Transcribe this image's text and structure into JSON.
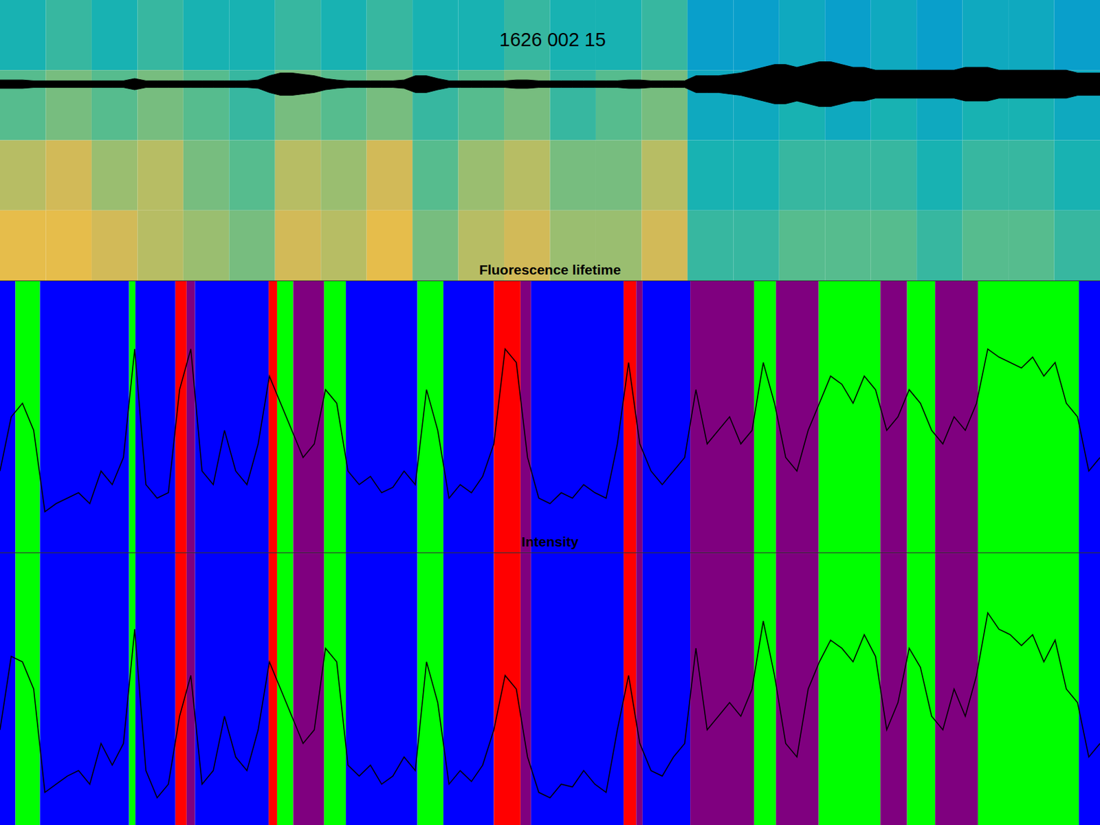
{
  "chart_data": [
    {
      "type": "spectrogram",
      "title": "1626 002 15",
      "tick_labels": false,
      "xlim": [
        0,
        1568
      ],
      "ylim": [
        0,
        100
      ],
      "clim": [
        0,
        1
      ],
      "cells": [
        [
          0.45,
          0.5,
          0.45,
          0.5,
          0.45,
          0.45,
          0.5,
          0.45,
          0.5,
          0.45,
          0.45,
          0.5,
          0.45,
          0.45,
          0.5,
          0.35,
          0.35,
          0.4,
          0.35,
          0.4,
          0.35,
          0.4,
          0.4,
          0.35
        ],
        [
          0.55,
          0.6,
          0.55,
          0.6,
          0.55,
          0.5,
          0.6,
          0.55,
          0.6,
          0.5,
          0.55,
          0.6,
          0.5,
          0.55,
          0.6,
          0.4,
          0.4,
          0.45,
          0.4,
          0.45,
          0.4,
          0.45,
          0.45,
          0.4
        ],
        [
          0.7,
          0.75,
          0.65,
          0.7,
          0.6,
          0.55,
          0.7,
          0.65,
          0.75,
          0.55,
          0.65,
          0.7,
          0.6,
          0.6,
          0.7,
          0.45,
          0.45,
          0.5,
          0.5,
          0.5,
          0.45,
          0.5,
          0.5,
          0.45
        ],
        [
          0.8,
          0.8,
          0.75,
          0.7,
          0.65,
          0.6,
          0.75,
          0.7,
          0.8,
          0.6,
          0.7,
          0.75,
          0.65,
          0.65,
          0.75,
          0.5,
          0.5,
          0.55,
          0.55,
          0.55,
          0.5,
          0.55,
          0.55,
          0.5
        ]
      ],
      "trace_color": "#000000",
      "trace_center": 70,
      "x": [
        0,
        16,
        32,
        48,
        64,
        80,
        96,
        112,
        128,
        144,
        160,
        176,
        192,
        208,
        224,
        240,
        256,
        272,
        288,
        304,
        320,
        336,
        352,
        368,
        384,
        400,
        416,
        432,
        448,
        464,
        480,
        496,
        512,
        528,
        544,
        560,
        576,
        592,
        608,
        624,
        640,
        656,
        672,
        688,
        704,
        720,
        736,
        752,
        768,
        784,
        800,
        816,
        832,
        848,
        864,
        880,
        896,
        912,
        928,
        944,
        960,
        976,
        992,
        1008,
        1024,
        1040,
        1056,
        1072,
        1088,
        1104,
        1120,
        1136,
        1152,
        1168,
        1184,
        1200,
        1216,
        1232,
        1248,
        1264,
        1280,
        1296,
        1312,
        1328,
        1344,
        1360,
        1376,
        1392,
        1408,
        1424,
        1440,
        1456,
        1472,
        1488,
        1504,
        1520,
        1536,
        1552,
        1568
      ],
      "trace_amplitude": [
        1.5,
        1.5,
        1.5,
        1.2,
        1.2,
        1.2,
        1.2,
        1.2,
        1.2,
        1.2,
        1.2,
        1.2,
        2,
        1.2,
        1.2,
        1.2,
        1.2,
        1.2,
        1.2,
        1.2,
        1.2,
        1.2,
        1.2,
        1.5,
        3,
        4,
        4,
        3.5,
        3,
        2,
        1.5,
        1.2,
        1.2,
        1.2,
        1.2,
        1.2,
        1.5,
        3,
        3,
        2,
        1.2,
        1.2,
        1.2,
        1.2,
        1.2,
        1.2,
        1.5,
        1.5,
        1.2,
        1.2,
        1.2,
        1.2,
        1.2,
        1.2,
        1.2,
        1.2,
        1.5,
        1.5,
        1.2,
        1.2,
        1.2,
        1.2,
        3,
        3,
        3,
        3.5,
        4,
        5,
        6,
        7,
        7,
        6,
        7,
        8,
        8,
        7,
        6,
        6,
        5,
        5,
        5,
        5,
        5,
        5,
        5,
        5,
        6,
        6,
        6,
        5,
        5,
        5,
        5,
        5,
        5,
        5,
        4,
        4,
        4
      ]
    },
    {
      "type": "line",
      "title": "Fluorescence lifetime",
      "tick_labels": false,
      "xlim": [
        0,
        1568
      ],
      "ylim": [
        0,
        100
      ],
      "color": "#000000",
      "x": [
        0,
        16,
        32,
        48,
        64,
        80,
        96,
        112,
        128,
        144,
        160,
        176,
        192,
        208,
        224,
        240,
        256,
        272,
        288,
        304,
        320,
        336,
        352,
        368,
        384,
        400,
        416,
        432,
        448,
        464,
        480,
        496,
        512,
        528,
        544,
        560,
        576,
        592,
        608,
        624,
        640,
        656,
        672,
        688,
        704,
        720,
        736,
        752,
        768,
        784,
        800,
        816,
        832,
        848,
        864,
        880,
        896,
        912,
        928,
        944,
        960,
        976,
        992,
        1008,
        1024,
        1040,
        1056,
        1072,
        1088,
        1104,
        1120,
        1136,
        1152,
        1168,
        1184,
        1200,
        1216,
        1232,
        1248,
        1264,
        1280,
        1296,
        1312,
        1328,
        1344,
        1360,
        1376,
        1392,
        1408,
        1424,
        1440,
        1456,
        1472,
        1488,
        1504,
        1520,
        1536,
        1552,
        1568
      ],
      "values": [
        30,
        50,
        55,
        45,
        15,
        18,
        20,
        22,
        18,
        30,
        25,
        35,
        75,
        25,
        20,
        22,
        60,
        75,
        30,
        25,
        45,
        30,
        25,
        40,
        65,
        55,
        45,
        35,
        40,
        60,
        55,
        30,
        25,
        28,
        22,
        24,
        30,
        25,
        60,
        45,
        20,
        25,
        22,
        28,
        40,
        75,
        70,
        35,
        20,
        18,
        22,
        20,
        25,
        22,
        20,
        40,
        70,
        40,
        30,
        25,
        30,
        35,
        60,
        40,
        45,
        50,
        40,
        45,
        70,
        55,
        35,
        30,
        45,
        55,
        65,
        62,
        55,
        65,
        60,
        45,
        50,
        60,
        55,
        45,
        40,
        50,
        45,
        55,
        75,
        72,
        70,
        68,
        72,
        65,
        70,
        55,
        50,
        30,
        35
      ],
      "bands": [
        {
          "start": 0,
          "end": 22,
          "color": "#0000ff"
        },
        {
          "start": 22,
          "end": 57,
          "color": "#00ff00"
        },
        {
          "start": 57,
          "end": 184,
          "color": "#0000ff"
        },
        {
          "start": 184,
          "end": 193,
          "color": "#00ff00"
        },
        {
          "start": 193,
          "end": 250,
          "color": "#0000ff"
        },
        {
          "start": 250,
          "end": 266,
          "color": "#ff0000"
        },
        {
          "start": 266,
          "end": 278,
          "color": "#7f007f"
        },
        {
          "start": 278,
          "end": 383,
          "color": "#0000ff"
        },
        {
          "start": 383,
          "end": 395,
          "color": "#ff0000"
        },
        {
          "start": 395,
          "end": 418,
          "color": "#00ff00"
        },
        {
          "start": 418,
          "end": 462,
          "color": "#7f007f"
        },
        {
          "start": 462,
          "end": 493,
          "color": "#00ff00"
        },
        {
          "start": 493,
          "end": 595,
          "color": "#0000ff"
        },
        {
          "start": 595,
          "end": 632,
          "color": "#00ff00"
        },
        {
          "start": 632,
          "end": 704,
          "color": "#0000ff"
        },
        {
          "start": 704,
          "end": 742,
          "color": "#ff0000"
        },
        {
          "start": 742,
          "end": 757,
          "color": "#7f007f"
        },
        {
          "start": 757,
          "end": 889,
          "color": "#0000ff"
        },
        {
          "start": 889,
          "end": 907,
          "color": "#ff0000"
        },
        {
          "start": 907,
          "end": 916,
          "color": "#7f007f"
        },
        {
          "start": 916,
          "end": 984,
          "color": "#0000ff"
        },
        {
          "start": 984,
          "end": 1075,
          "color": "#7f007f"
        },
        {
          "start": 1075,
          "end": 1106,
          "color": "#00ff00"
        },
        {
          "start": 1106,
          "end": 1167,
          "color": "#7f007f"
        },
        {
          "start": 1167,
          "end": 1255,
          "color": "#00ff00"
        },
        {
          "start": 1255,
          "end": 1293,
          "color": "#7f007f"
        },
        {
          "start": 1293,
          "end": 1333,
          "color": "#00ff00"
        },
        {
          "start": 1333,
          "end": 1394,
          "color": "#7f007f"
        },
        {
          "start": 1394,
          "end": 1538,
          "color": "#00ff00"
        },
        {
          "start": 1538,
          "end": 1568,
          "color": "#0000ff"
        }
      ]
    },
    {
      "type": "line",
      "title": "Intensity",
      "tick_labels": false,
      "xlim": [
        0,
        1568
      ],
      "ylim": [
        0,
        100
      ],
      "color": "#000000",
      "x": [
        0,
        16,
        32,
        48,
        64,
        80,
        96,
        112,
        128,
        144,
        160,
        176,
        192,
        208,
        224,
        240,
        256,
        272,
        288,
        304,
        320,
        336,
        352,
        368,
        384,
        400,
        416,
        432,
        448,
        464,
        480,
        496,
        512,
        528,
        544,
        560,
        576,
        592,
        608,
        624,
        640,
        656,
        672,
        688,
        704,
        720,
        736,
        752,
        768,
        784,
        800,
        816,
        832,
        848,
        864,
        880,
        896,
        912,
        928,
        944,
        960,
        976,
        992,
        1008,
        1024,
        1040,
        1056,
        1072,
        1088,
        1104,
        1120,
        1136,
        1152,
        1168,
        1184,
        1200,
        1216,
        1232,
        1248,
        1264,
        1280,
        1296,
        1312,
        1328,
        1344,
        1360,
        1376,
        1392,
        1408,
        1424,
        1440,
        1456,
        1472,
        1488,
        1504,
        1520,
        1536,
        1552,
        1568
      ],
      "values": [
        35,
        62,
        60,
        50,
        12,
        15,
        18,
        20,
        15,
        30,
        22,
        30,
        72,
        20,
        10,
        15,
        40,
        55,
        15,
        20,
        40,
        25,
        20,
        35,
        60,
        50,
        40,
        30,
        35,
        65,
        60,
        22,
        18,
        22,
        15,
        18,
        25,
        20,
        60,
        45,
        15,
        20,
        16,
        22,
        35,
        55,
        50,
        25,
        12,
        10,
        15,
        14,
        20,
        15,
        12,
        35,
        55,
        30,
        20,
        18,
        25,
        30,
        65,
        35,
        40,
        45,
        40,
        50,
        75,
        55,
        30,
        25,
        50,
        60,
        68,
        65,
        60,
        70,
        62,
        35,
        45,
        65,
        58,
        40,
        35,
        50,
        40,
        55,
        78,
        72,
        70,
        66,
        70,
        60,
        68,
        50,
        45,
        25,
        30
      ],
      "bands": [
        {
          "start": 0,
          "end": 22,
          "color": "#0000ff"
        },
        {
          "start": 22,
          "end": 57,
          "color": "#00ff00"
        },
        {
          "start": 57,
          "end": 184,
          "color": "#0000ff"
        },
        {
          "start": 184,
          "end": 193,
          "color": "#00ff00"
        },
        {
          "start": 193,
          "end": 250,
          "color": "#0000ff"
        },
        {
          "start": 250,
          "end": 266,
          "color": "#ff0000"
        },
        {
          "start": 266,
          "end": 278,
          "color": "#7f007f"
        },
        {
          "start": 278,
          "end": 383,
          "color": "#0000ff"
        },
        {
          "start": 383,
          "end": 395,
          "color": "#ff0000"
        },
        {
          "start": 395,
          "end": 418,
          "color": "#00ff00"
        },
        {
          "start": 418,
          "end": 462,
          "color": "#7f007f"
        },
        {
          "start": 462,
          "end": 493,
          "color": "#00ff00"
        },
        {
          "start": 493,
          "end": 595,
          "color": "#0000ff"
        },
        {
          "start": 595,
          "end": 632,
          "color": "#00ff00"
        },
        {
          "start": 632,
          "end": 704,
          "color": "#0000ff"
        },
        {
          "start": 704,
          "end": 742,
          "color": "#ff0000"
        },
        {
          "start": 742,
          "end": 757,
          "color": "#7f007f"
        },
        {
          "start": 757,
          "end": 889,
          "color": "#0000ff"
        },
        {
          "start": 889,
          "end": 907,
          "color": "#ff0000"
        },
        {
          "start": 907,
          "end": 916,
          "color": "#7f007f"
        },
        {
          "start": 916,
          "end": 984,
          "color": "#0000ff"
        },
        {
          "start": 984,
          "end": 1075,
          "color": "#7f007f"
        },
        {
          "start": 1075,
          "end": 1106,
          "color": "#00ff00"
        },
        {
          "start": 1106,
          "end": 1167,
          "color": "#7f007f"
        },
        {
          "start": 1167,
          "end": 1255,
          "color": "#00ff00"
        },
        {
          "start": 1255,
          "end": 1293,
          "color": "#7f007f"
        },
        {
          "start": 1293,
          "end": 1333,
          "color": "#00ff00"
        },
        {
          "start": 1333,
          "end": 1394,
          "color": "#7f007f"
        },
        {
          "start": 1394,
          "end": 1538,
          "color": "#00ff00"
        },
        {
          "start": 1538,
          "end": 1568,
          "color": "#0000ff"
        }
      ]
    }
  ]
}
